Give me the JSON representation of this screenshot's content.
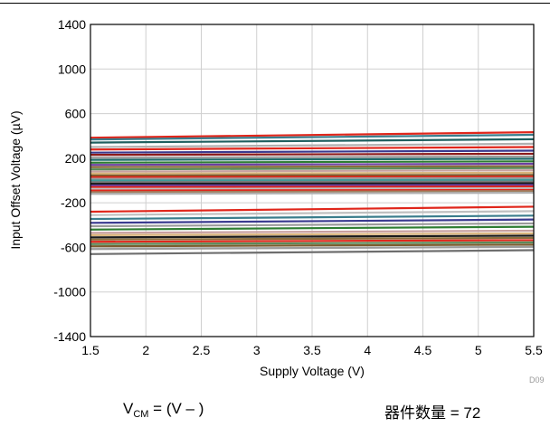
{
  "chart_data": {
    "type": "line",
    "title": "",
    "xlabel": "Supply Voltage (V)",
    "ylabel": "Input Offset Voltage (µV)",
    "xlim": [
      1.5,
      5.5
    ],
    "ylim": [
      -1400,
      1400
    ],
    "x_ticks": [
      "1.5",
      "2",
      "2.5",
      "3",
      "3.5",
      "4",
      "4.5",
      "5",
      "5.5"
    ],
    "y_ticks": [
      "1400",
      "1000",
      "600",
      "200",
      "-200",
      "-600",
      "-1000",
      "-1400"
    ],
    "grid": true,
    "legend": "none",
    "x": [
      1.5,
      5.5
    ],
    "series": [
      {
        "values": [
          384,
          433
        ],
        "color": "#e0261b"
      },
      {
        "values": [
          368,
          410
        ],
        "color": "#3a7d8c"
      },
      {
        "values": [
          340,
          370
        ],
        "color": "#1f5f5f"
      },
      {
        "values": [
          300,
          330
        ],
        "color": "#b0b0b0"
      },
      {
        "values": [
          278,
          300
        ],
        "color": "#e0261b"
      },
      {
        "values": [
          250,
          268
        ],
        "color": "#3a3a8f"
      },
      {
        "values": [
          230,
          240
        ],
        "color": "#8b1a1a"
      },
      {
        "values": [
          205,
          215
        ],
        "color": "#9b9b9b"
      },
      {
        "values": [
          185,
          195
        ],
        "color": "#1f6e6e"
      },
      {
        "values": [
          160,
          172
        ],
        "color": "#2e7d32"
      },
      {
        "values": [
          140,
          150
        ],
        "color": "#6b3fa0"
      },
      {
        "values": [
          120,
          128
        ],
        "color": "#8a6d3b"
      },
      {
        "values": [
          100,
          112
        ],
        "color": "#5a8a5a"
      },
      {
        "values": [
          80,
          92
        ],
        "color": "#c8a0a0"
      },
      {
        "values": [
          62,
          70
        ],
        "color": "#d9b37a"
      },
      {
        "values": [
          45,
          50
        ],
        "color": "#7a5c2e"
      },
      {
        "values": [
          30,
          35
        ],
        "color": "#e0261b"
      },
      {
        "values": [
          15,
          22
        ],
        "color": "#9b9b9b"
      },
      {
        "values": [
          0,
          5
        ],
        "color": "#3c9a9a"
      },
      {
        "values": [
          -15,
          -10
        ],
        "color": "#7a7a7a"
      },
      {
        "values": [
          -30,
          -25
        ],
        "color": "#1a1a1a"
      },
      {
        "values": [
          -45,
          -40
        ],
        "color": "#6b3fa0"
      },
      {
        "values": [
          -60,
          -55
        ],
        "color": "#e0261b"
      },
      {
        "values": [
          -75,
          -70
        ],
        "color": "#c0c0c0"
      },
      {
        "values": [
          -90,
          -85
        ],
        "color": "#e0261b"
      },
      {
        "values": [
          -105,
          -95
        ],
        "color": "#a08060"
      },
      {
        "values": [
          -120,
          -110
        ],
        "color": "#b0b0b0"
      },
      {
        "values": [
          -280,
          -235
        ],
        "color": "#e0261b"
      },
      {
        "values": [
          -310,
          -275
        ],
        "color": "#c0c0c0"
      },
      {
        "values": [
          -345,
          -315
        ],
        "color": "#3a7d8c"
      },
      {
        "values": [
          -380,
          -350
        ],
        "color": "#3a3a8f"
      },
      {
        "values": [
          -410,
          -385
        ],
        "color": "#9b9b9b"
      },
      {
        "values": [
          -440,
          -415
        ],
        "color": "#2e7d32"
      },
      {
        "values": [
          -470,
          -450
        ],
        "color": "#c8a0a0"
      },
      {
        "values": [
          -490,
          -475
        ],
        "color": "#d9b37a"
      },
      {
        "values": [
          -510,
          -495
        ],
        "color": "#1a1a1a"
      },
      {
        "values": [
          -530,
          -515
        ],
        "color": "#8a6d3b"
      },
      {
        "values": [
          -550,
          -535
        ],
        "color": "#e0261b"
      },
      {
        "values": [
          -570,
          -555
        ],
        "color": "#5a8a5a"
      },
      {
        "values": [
          -590,
          -575
        ],
        "color": "#7a5c2e"
      },
      {
        "values": [
          -615,
          -595
        ],
        "color": "#9b9b9b"
      },
      {
        "values": [
          -660,
          -625
        ],
        "color": "#6e6e6e"
      }
    ]
  },
  "captions": {
    "vcm_main": "V",
    "vcm_sub": "CM",
    "vcm_rest": " = (V – )",
    "device_count": "器件数量 = 72"
  },
  "figure_id": "D09"
}
